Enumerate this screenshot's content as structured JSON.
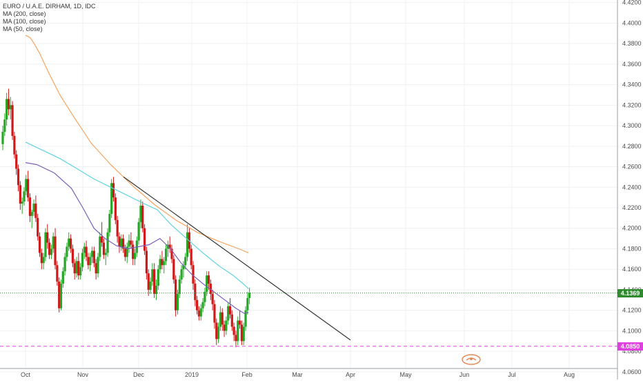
{
  "legend": {
    "title": "EURO / U.A.E. DIRHAM, 1D, IDC",
    "ma200": "MA (200, close)",
    "ma100": "MA (100, close)",
    "ma50": "MA (50, close)"
  },
  "price_tags": {
    "last": "4.1369",
    "support": "4.0850"
  },
  "colors": {
    "up": "#26a626",
    "down": "#d11818",
    "ma200": "#f7a35c",
    "ma100": "#5fd3e0",
    "ma50": "#7b5fb8",
    "trendline": "#333333",
    "last_price": "#2e8b2e",
    "support": "#e040e0"
  },
  "chart_data": {
    "type": "candlestick",
    "title": "EURO / U.A.E. DIRHAM, 1D, IDC",
    "y_ticks": [
      "4.4200",
      "4.4000",
      "4.3800",
      "4.3600",
      "4.3400",
      "4.3200",
      "4.3000",
      "4.2800",
      "4.2600",
      "4.2400",
      "4.2200",
      "4.2000",
      "4.1800",
      "4.1600",
      "4.1400",
      "4.1200",
      "4.1000",
      "4.0800",
      "4.0600"
    ],
    "x_ticks": [
      "Oct",
      "Nov",
      "Dec",
      "2019",
      "Feb",
      "Mar",
      "Apr",
      "May",
      "Jun",
      "Jul",
      "Aug"
    ],
    "ylim": [
      4.0525,
      4.4225
    ],
    "series": [
      {
        "name": "MA (200, close)",
        "points": [
          [
            0,
            4.388
          ],
          [
            0.08,
            4.386
          ],
          [
            0.15,
            4.38
          ],
          [
            0.25,
            4.37
          ],
          [
            0.4,
            4.352
          ],
          [
            0.6,
            4.33
          ],
          [
            0.85,
            4.308
          ],
          [
            1.15,
            4.283
          ],
          [
            1.5,
            4.262
          ],
          [
            1.9,
            4.241
          ],
          [
            2.3,
            4.223
          ],
          [
            2.7,
            4.208
          ],
          [
            3.1,
            4.196
          ],
          [
            3.5,
            4.187
          ],
          [
            3.85,
            4.18
          ],
          [
            4.03,
            4.176
          ]
        ]
      },
      {
        "name": "MA (100, close)",
        "points": [
          [
            0,
            4.284
          ],
          [
            0.3,
            4.276
          ],
          [
            0.6,
            4.268
          ],
          [
            0.9,
            4.258
          ],
          [
            1.2,
            4.248
          ],
          [
            1.5,
            4.24
          ],
          [
            1.8,
            4.232
          ],
          [
            2.1,
            4.224
          ],
          [
            2.35,
            4.218
          ],
          [
            2.6,
            4.204
          ],
          [
            2.9,
            4.19
          ],
          [
            3.2,
            4.176
          ],
          [
            3.5,
            4.163
          ],
          [
            3.75,
            4.154
          ],
          [
            3.95,
            4.145
          ],
          [
            4.03,
            4.141
          ]
        ]
      },
      {
        "name": "MA (50, close)",
        "points": [
          [
            0,
            4.264
          ],
          [
            0.2,
            4.262
          ],
          [
            0.5,
            4.254
          ],
          [
            0.8,
            4.239
          ],
          [
            1.0,
            4.22
          ],
          [
            1.2,
            4.2
          ],
          [
            1.4,
            4.19
          ],
          [
            1.6,
            4.183
          ],
          [
            1.8,
            4.18
          ],
          [
            2.0,
            4.182
          ],
          [
            2.2,
            4.184
          ],
          [
            2.4,
            4.19
          ],
          [
            2.6,
            4.18
          ],
          [
            2.8,
            4.166
          ],
          [
            3.0,
            4.155
          ],
          [
            3.2,
            4.146
          ],
          [
            3.4,
            4.138
          ],
          [
            3.6,
            4.13
          ],
          [
            3.8,
            4.122
          ],
          [
            3.95,
            4.117
          ],
          [
            4.03,
            4.118
          ]
        ]
      }
    ],
    "trendline": {
      "from": [
        1.73,
        4.25
      ],
      "to": [
        6.0,
        4.091
      ]
    },
    "last_price": 4.1369,
    "support_level": 4.085,
    "candles": [
      [
        4.282,
        4.3,
        4.276,
        4.294
      ],
      [
        4.294,
        4.312,
        4.29,
        4.306
      ],
      [
        4.306,
        4.332,
        4.3,
        4.326
      ],
      [
        4.326,
        4.336,
        4.31,
        4.316
      ],
      [
        4.316,
        4.328,
        4.306,
        4.32
      ],
      [
        4.32,
        4.324,
        4.286,
        4.29
      ],
      [
        4.29,
        4.294,
        4.268,
        4.272
      ],
      [
        4.272,
        4.276,
        4.252,
        4.258
      ],
      [
        4.258,
        4.262,
        4.236,
        4.242
      ],
      [
        4.242,
        4.246,
        4.218,
        4.224
      ],
      [
        4.224,
        4.23,
        4.214,
        4.226
      ],
      [
        4.226,
        4.24,
        4.222,
        4.236
      ],
      [
        4.236,
        4.252,
        4.232,
        4.248
      ],
      [
        4.248,
        4.256,
        4.226,
        4.23
      ],
      [
        4.23,
        4.234,
        4.206,
        4.212
      ],
      [
        4.212,
        4.218,
        4.2,
        4.216
      ],
      [
        4.216,
        4.228,
        4.212,
        4.224
      ],
      [
        4.224,
        4.232,
        4.206,
        4.21
      ],
      [
        4.21,
        4.214,
        4.188,
        4.192
      ],
      [
        4.192,
        4.196,
        4.172,
        4.176
      ],
      [
        4.176,
        4.18,
        4.16,
        4.166
      ],
      [
        4.166,
        4.176,
        4.16,
        4.172
      ],
      [
        4.172,
        4.2,
        4.168,
        4.196
      ],
      [
        4.196,
        4.204,
        4.18,
        4.186
      ],
      [
        4.186,
        4.19,
        4.17,
        4.174
      ],
      [
        4.174,
        4.184,
        4.17,
        4.18
      ],
      [
        4.18,
        4.196,
        4.176,
        4.192
      ],
      [
        4.192,
        4.2,
        4.16,
        4.164
      ],
      [
        4.164,
        4.168,
        4.144,
        4.148
      ],
      [
        4.148,
        4.152,
        4.118,
        4.122
      ],
      [
        4.122,
        4.15,
        4.12,
        4.146
      ],
      [
        4.146,
        4.162,
        4.142,
        4.158
      ],
      [
        4.158,
        4.176,
        4.154,
        4.172
      ],
      [
        4.172,
        4.186,
        4.168,
        4.182
      ],
      [
        4.182,
        4.196,
        4.178,
        4.19
      ],
      [
        4.19,
        4.194,
        4.176,
        4.18
      ],
      [
        4.18,
        4.184,
        4.162,
        4.166
      ],
      [
        4.166,
        4.17,
        4.15,
        4.156
      ],
      [
        4.156,
        4.172,
        4.152,
        4.168
      ],
      [
        4.168,
        4.176,
        4.15,
        4.154
      ],
      [
        4.154,
        4.166,
        4.15,
        4.162
      ],
      [
        4.162,
        4.18,
        4.158,
        4.176
      ],
      [
        4.176,
        4.186,
        4.17,
        4.182
      ],
      [
        4.182,
        4.188,
        4.168,
        4.172
      ],
      [
        4.172,
        4.176,
        4.16,
        4.164
      ],
      [
        4.164,
        4.176,
        4.158,
        4.172
      ],
      [
        4.172,
        4.182,
        4.166,
        4.178
      ],
      [
        4.178,
        4.182,
        4.162,
        4.166
      ],
      [
        4.166,
        4.17,
        4.15,
        4.156
      ],
      [
        4.156,
        4.176,
        4.152,
        4.172
      ],
      [
        4.172,
        4.196,
        4.168,
        4.192
      ],
      [
        4.192,
        4.206,
        4.182,
        4.186
      ],
      [
        4.186,
        4.19,
        4.17,
        4.174
      ],
      [
        4.174,
        4.18,
        4.164,
        4.176
      ],
      [
        4.176,
        4.2,
        4.172,
        4.196
      ],
      [
        4.196,
        4.218,
        4.192,
        4.214
      ],
      [
        4.214,
        4.248,
        4.21,
        4.244
      ],
      [
        4.244,
        4.25,
        4.226,
        4.23
      ],
      [
        4.23,
        4.234,
        4.204,
        4.208
      ],
      [
        4.208,
        4.212,
        4.186,
        4.192
      ],
      [
        4.192,
        4.196,
        4.176,
        4.182
      ],
      [
        4.182,
        4.194,
        4.178,
        4.19
      ],
      [
        4.19,
        4.194,
        4.176,
        4.18
      ],
      [
        4.18,
        4.184,
        4.168,
        4.172
      ],
      [
        4.172,
        4.186,
        4.166,
        4.182
      ],
      [
        4.182,
        4.194,
        4.176,
        4.188
      ],
      [
        4.188,
        4.196,
        4.18,
        4.184
      ],
      [
        4.184,
        4.188,
        4.164,
        4.17
      ],
      [
        4.17,
        4.18,
        4.164,
        4.176
      ],
      [
        4.176,
        4.192,
        4.172,
        4.188
      ],
      [
        4.188,
        4.21,
        4.184,
        4.206
      ],
      [
        4.206,
        4.228,
        4.2,
        4.222
      ],
      [
        4.222,
        4.226,
        4.196,
        4.2
      ],
      [
        4.2,
        4.204,
        4.174,
        4.178
      ],
      [
        4.178,
        4.182,
        4.15,
        4.156
      ],
      [
        4.156,
        4.16,
        4.134,
        4.14
      ],
      [
        4.14,
        4.152,
        4.136,
        4.148
      ],
      [
        4.148,
        4.166,
        4.144,
        4.16
      ],
      [
        4.16,
        4.166,
        4.132,
        4.136
      ],
      [
        4.136,
        4.15,
        4.13,
        4.144
      ],
      [
        4.144,
        4.164,
        4.14,
        4.16
      ],
      [
        4.16,
        4.174,
        4.156,
        4.17
      ],
      [
        4.17,
        4.178,
        4.16,
        4.164
      ],
      [
        4.164,
        4.172,
        4.156,
        4.168
      ],
      [
        4.168,
        4.184,
        4.164,
        4.18
      ],
      [
        4.18,
        4.188,
        4.172,
        4.184
      ],
      [
        4.184,
        4.192,
        4.176,
        4.18
      ],
      [
        4.18,
        4.184,
        4.166,
        4.17
      ],
      [
        4.17,
        4.174,
        4.146,
        4.15
      ],
      [
        4.15,
        4.154,
        4.114,
        4.12
      ],
      [
        4.12,
        4.14,
        4.116,
        4.136
      ],
      [
        4.136,
        4.154,
        4.132,
        4.15
      ],
      [
        4.15,
        4.164,
        4.146,
        4.16
      ],
      [
        4.16,
        4.168,
        4.152,
        4.164
      ],
      [
        4.164,
        4.176,
        4.16,
        4.172
      ],
      [
        4.172,
        4.204,
        4.168,
        4.196
      ],
      [
        4.196,
        4.2,
        4.176,
        4.18
      ],
      [
        4.18,
        4.184,
        4.16,
        4.164
      ],
      [
        4.164,
        4.168,
        4.14,
        4.146
      ],
      [
        4.146,
        4.15,
        4.124,
        4.13
      ],
      [
        4.13,
        4.134,
        4.116,
        4.12
      ],
      [
        4.12,
        4.124,
        4.11,
        4.114
      ],
      [
        4.114,
        4.126,
        4.11,
        4.122
      ],
      [
        4.122,
        4.132,
        4.118,
        4.128
      ],
      [
        4.128,
        4.142,
        4.124,
        4.138
      ],
      [
        4.138,
        4.158,
        4.134,
        4.154
      ],
      [
        4.154,
        4.158,
        4.14,
        4.146
      ],
      [
        4.146,
        4.15,
        4.13,
        4.136
      ],
      [
        4.136,
        4.14,
        4.12,
        4.126
      ],
      [
        4.126,
        4.13,
        4.102,
        4.108
      ],
      [
        4.108,
        4.112,
        4.086,
        4.092
      ],
      [
        4.092,
        4.108,
        4.088,
        4.104
      ],
      [
        4.104,
        4.124,
        4.1,
        4.118
      ],
      [
        4.118,
        4.122,
        4.1,
        4.106
      ],
      [
        4.106,
        4.11,
        4.094,
        4.1
      ],
      [
        4.1,
        4.114,
        4.096,
        4.11
      ],
      [
        4.11,
        4.128,
        4.106,
        4.124
      ],
      [
        4.124,
        4.132,
        4.112,
        4.116
      ],
      [
        4.116,
        4.12,
        4.1,
        4.104
      ],
      [
        4.104,
        4.108,
        4.09,
        4.096
      ],
      [
        4.096,
        4.1,
        4.084,
        4.09
      ],
      [
        4.09,
        4.114,
        4.086,
        4.11
      ],
      [
        4.11,
        4.12,
        4.102,
        4.106
      ],
      [
        4.106,
        4.11,
        4.086,
        4.09
      ],
      [
        4.09,
        4.108,
        4.086,
        4.104
      ],
      [
        4.104,
        4.124,
        4.1,
        4.12
      ],
      [
        4.12,
        4.138,
        4.116,
        4.132
      ],
      [
        4.132,
        4.142,
        4.126,
        4.137
      ]
    ]
  }
}
